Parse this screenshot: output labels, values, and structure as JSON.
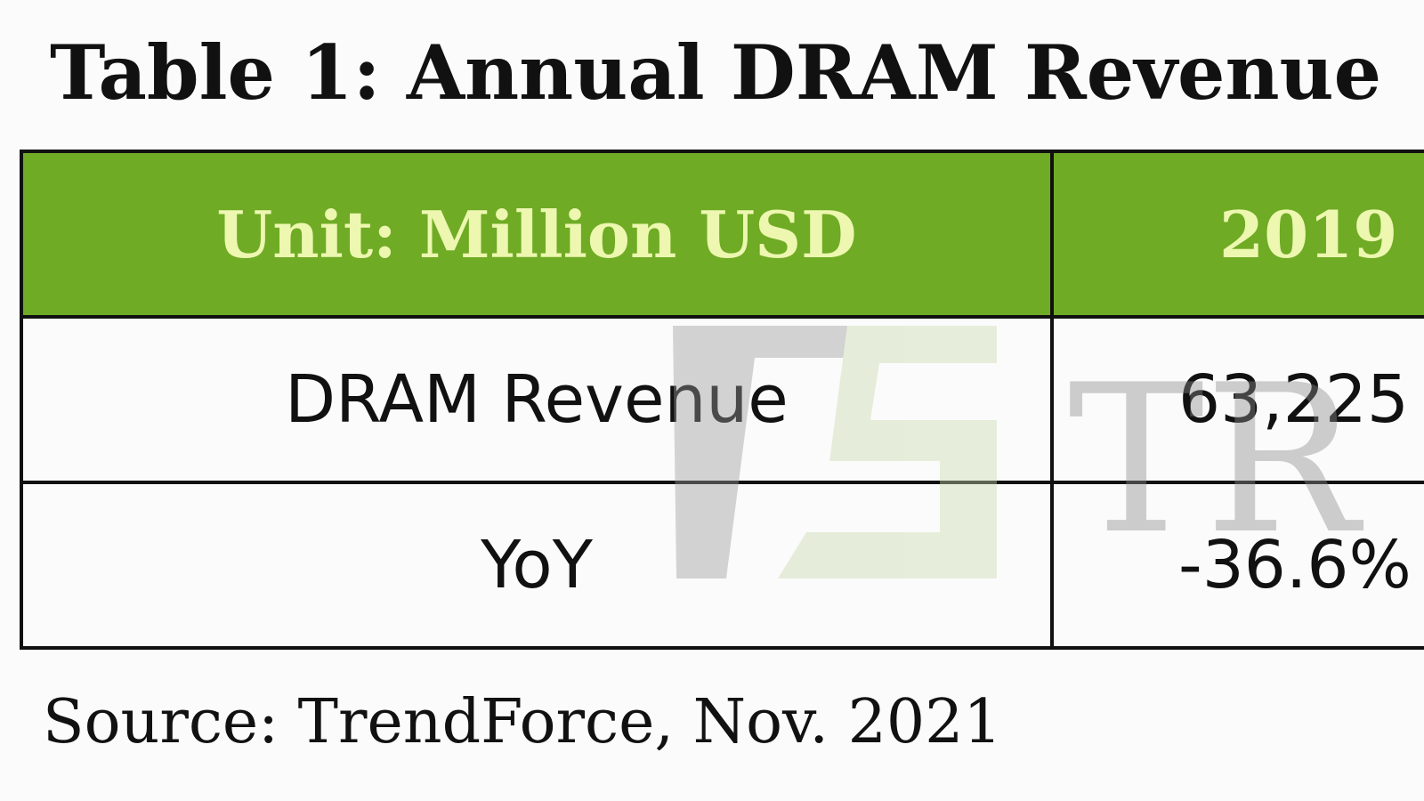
{
  "title": "Table 1: Annual DRAM Revenue",
  "table": {
    "header": {
      "unit_label": "Unit: Million USD",
      "year": "2019"
    },
    "rows": [
      {
        "label": "DRAM Revenue",
        "value": "63,225"
      },
      {
        "label": "YoY",
        "value": "-36.6%"
      }
    ]
  },
  "source": "Source: TrendForce, Nov. 2021",
  "watermark": {
    "text": "TR"
  },
  "colors": {
    "header_bg": "#6fab24",
    "header_text": "#edf7b0",
    "border": "#111111"
  }
}
